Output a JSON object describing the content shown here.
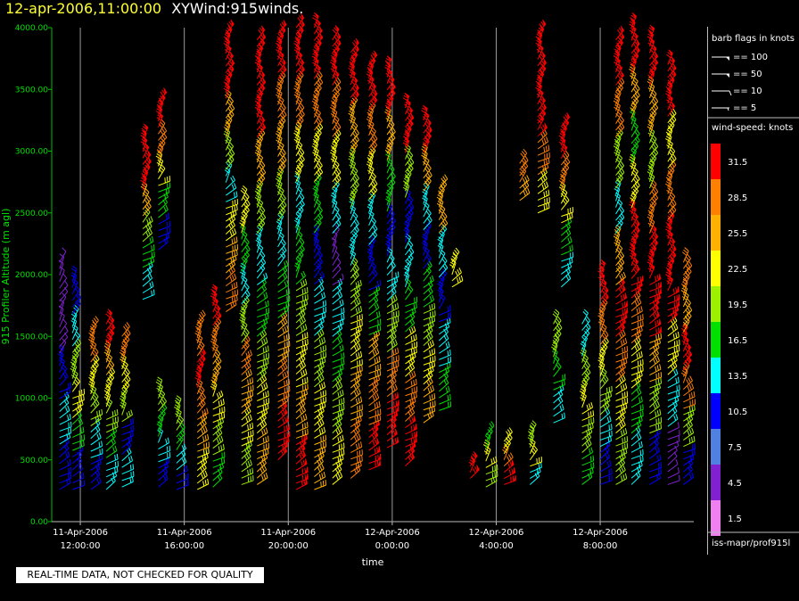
{
  "header": {
    "datetime": "12-apr-2006,11:00:00",
    "product": "XYWind:915winds."
  },
  "chart_data": {
    "type": "scatter",
    "subtype": "wind-barb time-height",
    "xlabel": "time",
    "ylabel": "915 Profiler Altitude (m agl)",
    "ylim": [
      0,
      4000
    ],
    "yticks": [
      "0.00",
      "500.00",
      "1000.00",
      "1500.00",
      "2000.00",
      "2500.00",
      "3000.00",
      "3500.00",
      "4000.00"
    ],
    "xticks": [
      {
        "date": "11-Apr-2006",
        "time": "12:00:00",
        "hour": 0
      },
      {
        "date": "11-Apr-2006",
        "time": "16:00:00",
        "hour": 4
      },
      {
        "date": "11-Apr-2006",
        "time": "20:00:00",
        "hour": 8
      },
      {
        "date": "12-Apr-2006",
        "time": "0:00:00",
        "hour": 12
      },
      {
        "date": "12-Apr-2006",
        "time": "4:00:00",
        "hour": 16
      },
      {
        "date": "12-Apr-2006",
        "time": "8:00:00",
        "hour": 20
      }
    ],
    "xlim_hours": [
      -1.1,
      23.6
    ],
    "grid": "vertical",
    "profiles": [
      {
        "hour": -0.8,
        "from": 260,
        "to": 2100,
        "speeds": [
          10.5,
          13.5,
          10.5,
          4.5,
          4.5
        ]
      },
      {
        "hour": -0.3,
        "from": 260,
        "to": 1950,
        "speeds": [
          10.5,
          16.5,
          22.5,
          19.5,
          13.5,
          10.5
        ]
      },
      {
        "hour": 0.4,
        "from": 260,
        "to": 1550,
        "speeds": [
          10.5,
          13.5,
          19.5,
          22.5,
          28.5
        ]
      },
      {
        "hour": 1.0,
        "from": 260,
        "to": 1600,
        "speeds": [
          13.5,
          16.5,
          19.5,
          22.5,
          25.5,
          31.5
        ]
      },
      {
        "hour": 1.6,
        "from": 280,
        "to": 1500,
        "speeds": [
          13.5,
          10.5,
          19.5,
          22.5,
          28.5
        ]
      },
      {
        "hour": 2.4,
        "from": 1800,
        "to": 3100,
        "speeds": [
          13.5,
          16.5,
          19.5,
          25.5,
          31.5,
          31.5
        ]
      },
      {
        "hour": 3.0,
        "from": 280,
        "to": 1050,
        "speeds": [
          10.5,
          13.5,
          16.5,
          19.5
        ]
      },
      {
        "hour": 3.0,
        "from": 2200,
        "to": 3400,
        "speeds": [
          10.5,
          16.5,
          22.5,
          28.5,
          31.5
        ]
      },
      {
        "hour": 3.7,
        "from": 260,
        "to": 900,
        "speeds": [
          10.5,
          13.5,
          16.5,
          19.5
        ]
      },
      {
        "hour": 4.5,
        "from": 260,
        "to": 1600,
        "speeds": [
          22.5,
          25.5,
          28.5,
          31.5,
          28.5
        ]
      },
      {
        "hour": 5.1,
        "from": 280,
        "to": 1800,
        "speeds": [
          16.5,
          19.5,
          22.5,
          25.5,
          28.5,
          31.5
        ]
      },
      {
        "hour": 5.6,
        "from": 1700,
        "to": 3950,
        "speeds": [
          28.5,
          25.5,
          22.5,
          13.5,
          19.5,
          25.5,
          31.5,
          31.5
        ]
      },
      {
        "hour": 6.2,
        "from": 300,
        "to": 2600,
        "speeds": [
          19.5,
          22.5,
          25.5,
          28.5,
          19.5,
          13.5,
          16.5,
          22.5
        ]
      },
      {
        "hour": 6.8,
        "from": 300,
        "to": 3900,
        "speeds": [
          25.5,
          22.5,
          19.5,
          16.5,
          13.5,
          19.5,
          25.5,
          31.5,
          31.5
        ]
      },
      {
        "hour": 7.6,
        "from": 500,
        "to": 3950,
        "speeds": [
          31.5,
          28.5,
          25.5,
          16.5,
          13.5,
          19.5,
          25.5,
          28.5,
          31.5
        ]
      },
      {
        "hour": 8.3,
        "from": 260,
        "to": 4000,
        "speeds": [
          31.5,
          25.5,
          22.5,
          19.5,
          16.5,
          13.5,
          22.5,
          28.5,
          31.5
        ]
      },
      {
        "hour": 9.0,
        "from": 260,
        "to": 4000,
        "speeds": [
          25.5,
          22.5,
          19.5,
          13.5,
          10.5,
          16.5,
          22.5,
          28.5,
          31.5
        ]
      },
      {
        "hour": 9.7,
        "from": 300,
        "to": 3900,
        "speeds": [
          22.5,
          19.5,
          16.5,
          13.5,
          4.5,
          13.5,
          22.5,
          28.5,
          31.5
        ]
      },
      {
        "hour": 10.4,
        "from": 350,
        "to": 3800,
        "speeds": [
          28.5,
          25.5,
          22.5,
          19.5,
          13.5,
          19.5,
          25.5,
          31.5
        ]
      },
      {
        "hour": 11.1,
        "from": 420,
        "to": 3700,
        "speeds": [
          31.5,
          28.5,
          25.5,
          16.5,
          10.5,
          13.5,
          22.5,
          28.5,
          31.5
        ]
      },
      {
        "hour": 11.8,
        "from": 600,
        "to": 3650,
        "speeds": [
          31.5,
          28.5,
          19.5,
          13.5,
          10.5,
          16.5,
          25.5,
          31.5
        ]
      },
      {
        "hour": 12.5,
        "from": 450,
        "to": 3350,
        "speeds": [
          31.5,
          28.5,
          22.5,
          16.5,
          13.5,
          10.5,
          19.5,
          31.5
        ]
      },
      {
        "hour": 13.2,
        "from": 800,
        "to": 3250,
        "speeds": [
          25.5,
          22.5,
          19.5,
          16.5,
          10.5,
          13.5,
          25.5,
          31.5
        ]
      },
      {
        "hour": 13.8,
        "from": 900,
        "to": 2700,
        "speeds": [
          16.5,
          13.5,
          10.5,
          13.5,
          25.5
        ]
      },
      {
        "hour": 14.3,
        "from": 1900,
        "to": 2100,
        "speeds": [
          22.5,
          22.5
        ]
      },
      {
        "hour": 15.0,
        "from": 350,
        "to": 450,
        "speeds": [
          31.5
        ]
      },
      {
        "hour": 15.6,
        "from": 280,
        "to": 700,
        "speeds": [
          19.5,
          22.5,
          16.5
        ]
      },
      {
        "hour": 16.3,
        "from": 300,
        "to": 650,
        "speeds": [
          31.5,
          28.5,
          22.5
        ]
      },
      {
        "hour": 16.9,
        "from": 2600,
        "to": 2900,
        "speeds": [
          25.5,
          28.5
        ]
      },
      {
        "hour": 17.3,
        "from": 300,
        "to": 700,
        "speeds": [
          13.5,
          22.5,
          19.5
        ]
      },
      {
        "hour": 17.6,
        "from": 2500,
        "to": 3950,
        "speeds": [
          22.5,
          28.5,
          31.5,
          31.5,
          31.5
        ]
      },
      {
        "hour": 18.2,
        "from": 800,
        "to": 1600,
        "speeds": [
          13.5,
          16.5,
          19.5
        ]
      },
      {
        "hour": 18.5,
        "from": 1900,
        "to": 3200,
        "speeds": [
          13.5,
          16.5,
          22.5,
          28.5,
          31.5
        ]
      },
      {
        "hour": 19.3,
        "from": 300,
        "to": 1600,
        "speeds": [
          16.5,
          19.5,
          22.5,
          19.5,
          13.5
        ]
      },
      {
        "hour": 20.0,
        "from": 300,
        "to": 2000,
        "speeds": [
          10.5,
          13.5,
          19.5,
          22.5,
          28.5,
          31.5
        ]
      },
      {
        "hour": 20.6,
        "from": 300,
        "to": 3900,
        "speeds": [
          19.5,
          22.5,
          28.5,
          31.5,
          25.5,
          13.5,
          19.5,
          28.5,
          31.5
        ]
      },
      {
        "hour": 21.2,
        "from": 300,
        "to": 4000,
        "speeds": [
          13.5,
          16.5,
          22.5,
          28.5,
          31.5,
          31.5,
          22.5,
          16.5,
          25.5,
          31.5
        ]
      },
      {
        "hour": 21.9,
        "from": 300,
        "to": 3900,
        "speeds": [
          10.5,
          19.5,
          25.5,
          31.5,
          31.5,
          28.5,
          19.5,
          25.5,
          31.5
        ]
      },
      {
        "hour": 22.6,
        "from": 300,
        "to": 3700,
        "speeds": [
          4.5,
          13.5,
          22.5,
          31.5,
          31.5,
          28.5,
          22.5,
          31.5
        ]
      },
      {
        "hour": 23.2,
        "from": 300,
        "to": 2100,
        "speeds": [
          10.5,
          19.5,
          28.5,
          31.5,
          25.5,
          28.5
        ]
      }
    ]
  },
  "legend": {
    "barb_title": "barb flags in knots",
    "barbs": [
      {
        "label": "== 100",
        "value": 100
      },
      {
        "label": "== 50",
        "value": 50
      },
      {
        "label": "== 10",
        "value": 10
      },
      {
        "label": "== 5",
        "value": 5
      }
    ],
    "speed_title": "wind-speed: knots",
    "scale": [
      {
        "label": "31.5",
        "color": "#ff0000"
      },
      {
        "label": "28.5",
        "color": "#ff7f00"
      },
      {
        "label": "25.5",
        "color": "#ffb000"
      },
      {
        "label": "22.5",
        "color": "#ffff00"
      },
      {
        "label": "19.5",
        "color": "#9cf000"
      },
      {
        "label": "16.5",
        "color": "#00e000"
      },
      {
        "label": "13.5",
        "color": "#00ffff"
      },
      {
        "label": "10.5",
        "color": "#0000ff"
      },
      {
        "label": "7.5",
        "color": "#5080e0"
      },
      {
        "label": "4.5",
        "color": "#8020d0"
      },
      {
        "label": "1.5",
        "color": "#f080f0"
      }
    ],
    "source": "iss-mapr/prof915l"
  },
  "footer": {
    "note": "REAL-TIME DATA, NOT CHECKED FOR QUALITY"
  }
}
